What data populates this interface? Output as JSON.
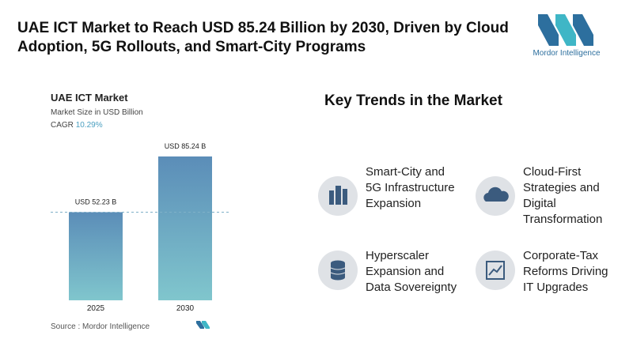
{
  "header": {
    "title": "UAE ICT Market to Reach USD 85.24 Billion by 2030, Driven by Cloud Adoption, 5G Rollouts, and Smart-City Programs",
    "logo_text": "Mordor Intelligence"
  },
  "chart_data": {
    "type": "bar",
    "title": "UAE ICT Market",
    "subtitle": "Market Size in USD Billion",
    "cagr_label": "CAGR",
    "cagr_value": "10.29%",
    "categories": [
      "2025",
      "2030"
    ],
    "values": [
      52.23,
      85.24
    ],
    "value_labels": [
      "USD 52.23 B",
      "USD 85.24 B"
    ],
    "color": "#6aa5c4",
    "source": "Source : Mordor Intelligence"
  },
  "trends": {
    "title": "Key Trends in the Market",
    "items": [
      "Smart-City and 5G Infrastructure Expansion",
      "Cloud-First Strategies and Digital Transformation",
      "Hyperscaler Expansion and Data Sovereignty",
      "Corporate-Tax Reforms Driving IT Upgrades"
    ]
  }
}
